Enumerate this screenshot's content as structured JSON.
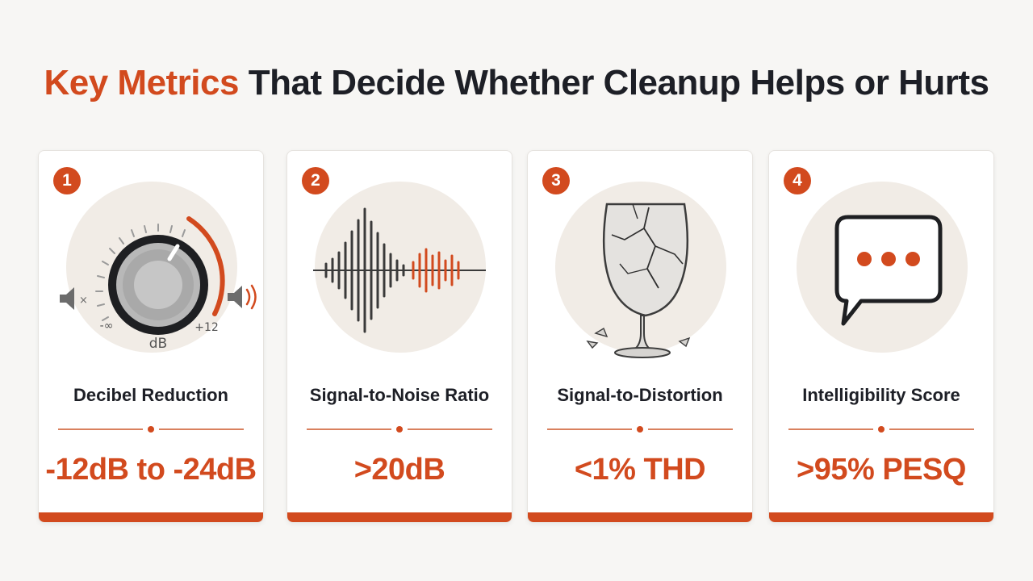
{
  "header": {
    "title_accent": "Key Metrics",
    "title_rest": " That Decide Whether Cleanup Helps or Hurts"
  },
  "colors": {
    "accent": "#d24a1e",
    "text": "#1d1f26",
    "card_bg": "#ffffff",
    "illustration_bg": "#f1ece6"
  },
  "cards": [
    {
      "number": "1",
      "icon": "volume-knob-icon",
      "knob_min_label": "-∞",
      "knob_unit_label": "dB",
      "knob_max_label": "+12",
      "label": "Decibel Reduction",
      "value": "-12dB to -24dB"
    },
    {
      "number": "2",
      "icon": "waveform-icon",
      "label": "Signal-to-Noise Ratio",
      "value": ">20dB"
    },
    {
      "number": "3",
      "icon": "cracked-glass-icon",
      "label": "Signal-to-Distortion",
      "value": "<1% THD"
    },
    {
      "number": "4",
      "icon": "speech-bubble-icon",
      "label": "Intelligibility Score",
      "value": ">95% PESQ"
    }
  ]
}
